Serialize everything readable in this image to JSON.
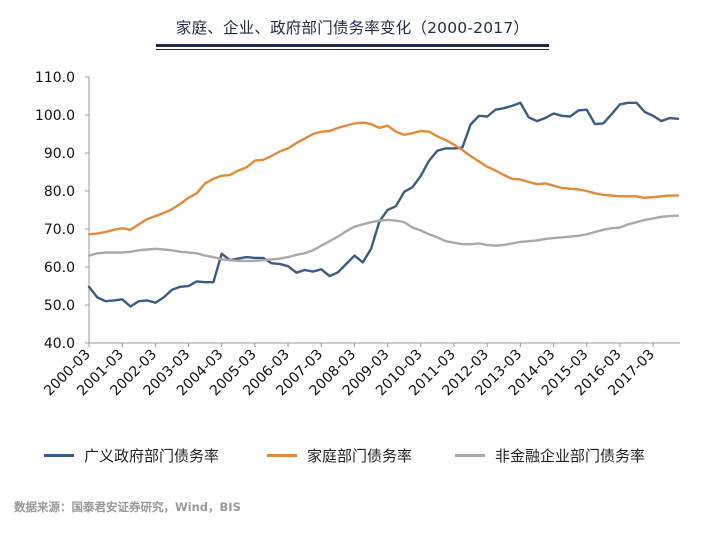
{
  "chart_data": {
    "type": "line",
    "title": "家庭、企业、政府部门债务率变化（2000-2017）",
    "x_tick_labels": [
      "2000-03",
      "2001-03",
      "2002-03",
      "2003-03",
      "2004-03",
      "2005-03",
      "2006-03",
      "2007-03",
      "2008-03",
      "2009-03",
      "2010-03",
      "2011-03",
      "2012-03",
      "2013-03",
      "2014-03",
      "2015-03",
      "2016-03",
      "2017-03"
    ],
    "y_tick_labels": [
      "110.0",
      "100.0",
      "90.0",
      "80.0",
      "70.0",
      "60.0",
      "50.0",
      "40.0"
    ],
    "ylim": [
      40,
      110
    ],
    "x_start": "2000-03",
    "x_end": "2017-12",
    "x_step": "quarter",
    "grid": false,
    "legend_position": "bottom",
    "series": [
      {
        "name": "广义政府部门债务率",
        "color": "#3c5a87",
        "values": [
          54.8,
          52.0,
          51.0,
          51.2,
          51.5,
          49.6,
          51.0,
          51.2,
          50.6,
          52.0,
          54.0,
          54.8,
          55.0,
          56.2,
          56.0,
          56.0,
          63.5,
          61.8,
          62.2,
          62.6,
          62.4,
          62.4,
          61.0,
          60.8,
          60.2,
          58.5,
          59.2,
          58.8,
          59.4,
          57.6,
          58.6,
          60.8,
          63.0,
          61.2,
          64.8,
          72.0,
          75.0,
          76.0,
          79.8,
          81.0,
          84.0,
          88.0,
          90.6,
          91.2,
          91.2,
          91.4,
          97.5,
          99.8,
          99.6,
          101.4,
          101.8,
          102.4,
          103.2,
          99.4,
          98.4,
          99.2,
          100.4,
          99.8,
          99.6,
          101.2,
          101.4,
          97.6,
          97.8,
          100.2,
          102.8,
          103.2,
          103.2,
          100.8,
          99.8,
          98.4,
          99.2,
          99.0
        ]
      },
      {
        "name": "家庭部门债务率",
        "color": "#e18a3a",
        "values": [
          68.6,
          68.8,
          69.2,
          69.8,
          70.2,
          69.8,
          71.2,
          72.6,
          73.4,
          74.2,
          75.2,
          76.6,
          78.2,
          79.4,
          82.0,
          83.2,
          84.0,
          84.2,
          85.4,
          86.2,
          88.0,
          88.2,
          89.2,
          90.4,
          91.2,
          92.6,
          93.8,
          95.0,
          95.6,
          95.8,
          96.6,
          97.2,
          97.8,
          98.0,
          97.6,
          96.6,
          97.2,
          95.6,
          94.8,
          95.2,
          95.8,
          95.6,
          94.4,
          93.4,
          92.2,
          90.8,
          89.2,
          87.8,
          86.4,
          85.4,
          84.2,
          83.2,
          83.0,
          82.4,
          81.8,
          82.0,
          81.4,
          80.8,
          80.6,
          80.4,
          80.0,
          79.4,
          79.0,
          78.8,
          78.6,
          78.6,
          78.6,
          78.2,
          78.4,
          78.6,
          78.8,
          78.8
        ]
      },
      {
        "name": "非金融企业部门债务率",
        "color": "#a9a9a9",
        "values": [
          63.0,
          63.6,
          63.8,
          63.8,
          63.8,
          64.0,
          64.4,
          64.6,
          64.8,
          64.6,
          64.4,
          64.0,
          63.8,
          63.6,
          63.0,
          62.6,
          62.0,
          61.8,
          61.6,
          61.6,
          61.6,
          61.8,
          62.0,
          62.2,
          62.6,
          63.2,
          63.6,
          64.4,
          65.6,
          66.8,
          68.0,
          69.4,
          70.6,
          71.2,
          71.8,
          72.2,
          72.4,
          72.2,
          71.8,
          70.4,
          69.6,
          68.6,
          67.8,
          66.8,
          66.4,
          66.0,
          66.0,
          66.2,
          65.8,
          65.6,
          65.8,
          66.2,
          66.6,
          66.8,
          67.0,
          67.4,
          67.6,
          67.8,
          68.0,
          68.2,
          68.6,
          69.2,
          69.8,
          70.2,
          70.4,
          71.2,
          71.8,
          72.4,
          72.8,
          73.2,
          73.4,
          73.5
        ]
      }
    ]
  },
  "source_text": "数据来源：国泰君安证券研究，Wind，BIS"
}
